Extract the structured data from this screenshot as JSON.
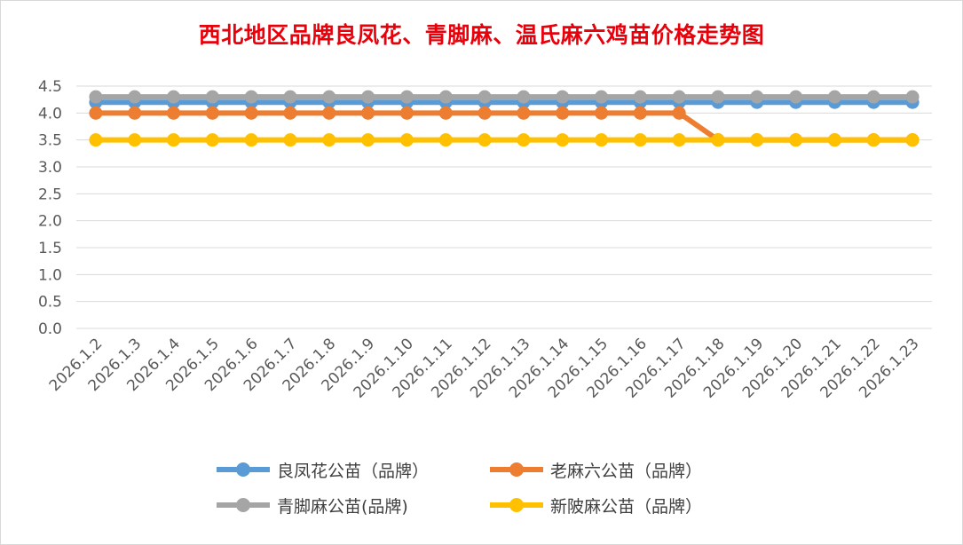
{
  "chart_data": {
    "type": "line",
    "title": "西北地区品牌良凤花、青脚麻、温氏麻六鸡苗价格走势图",
    "xlabel": "",
    "ylabel": "",
    "ylim": [
      0,
      4.5
    ],
    "yticks": [
      "0.0",
      "0.5",
      "1.0",
      "1.5",
      "2.0",
      "2.5",
      "3.0",
      "3.5",
      "4.0",
      "4.5"
    ],
    "grid": true,
    "legend_position": "bottom",
    "categories": [
      "2026.1.2",
      "2026.1.3",
      "2026.1.4",
      "2026.1.5",
      "2026.1.6",
      "2026.1.7",
      "2026.1.8",
      "2026.1.9",
      "2026.1.10",
      "2026.1.11",
      "2026.1.12",
      "2026.1.13",
      "2026.1.14",
      "2026.1.15",
      "2026.1.16",
      "2026.1.17",
      "2026.1.18",
      "2026.1.19",
      "2026.1.20",
      "2026.1.21",
      "2026.1.22",
      "2026.1.23"
    ],
    "series": [
      {
        "name": "良凤花公苗（品牌）",
        "color": "#5b9bd5",
        "values": [
          4.2,
          4.2,
          4.2,
          4.2,
          4.2,
          4.2,
          4.2,
          4.2,
          4.2,
          4.2,
          4.2,
          4.2,
          4.2,
          4.2,
          4.2,
          4.2,
          4.2,
          4.2,
          4.2,
          4.2,
          4.2,
          4.2
        ]
      },
      {
        "name": "老麻六公苗（品牌）",
        "color": "#ed7d31",
        "values": [
          4.0,
          4.0,
          4.0,
          4.0,
          4.0,
          4.0,
          4.0,
          4.0,
          4.0,
          4.0,
          4.0,
          4.0,
          4.0,
          4.0,
          4.0,
          4.0,
          3.5,
          3.5,
          3.5,
          3.5,
          3.5,
          3.5
        ]
      },
      {
        "name": "青脚麻公苗(品牌)",
        "color": "#a5a5a5",
        "values": [
          4.3,
          4.3,
          4.3,
          4.3,
          4.3,
          4.3,
          4.3,
          4.3,
          4.3,
          4.3,
          4.3,
          4.3,
          4.3,
          4.3,
          4.3,
          4.3,
          4.3,
          4.3,
          4.3,
          4.3,
          4.3,
          4.3
        ]
      },
      {
        "name": "新陂麻公苗（品牌）",
        "color": "#ffc000",
        "values": [
          3.5,
          3.5,
          3.5,
          3.5,
          3.5,
          3.5,
          3.5,
          3.5,
          3.5,
          3.5,
          3.5,
          3.5,
          3.5,
          3.5,
          3.5,
          3.5,
          3.5,
          3.5,
          3.5,
          3.5,
          3.5,
          3.5
        ]
      }
    ],
    "draw_order": [
      0,
      1,
      3,
      2
    ]
  }
}
